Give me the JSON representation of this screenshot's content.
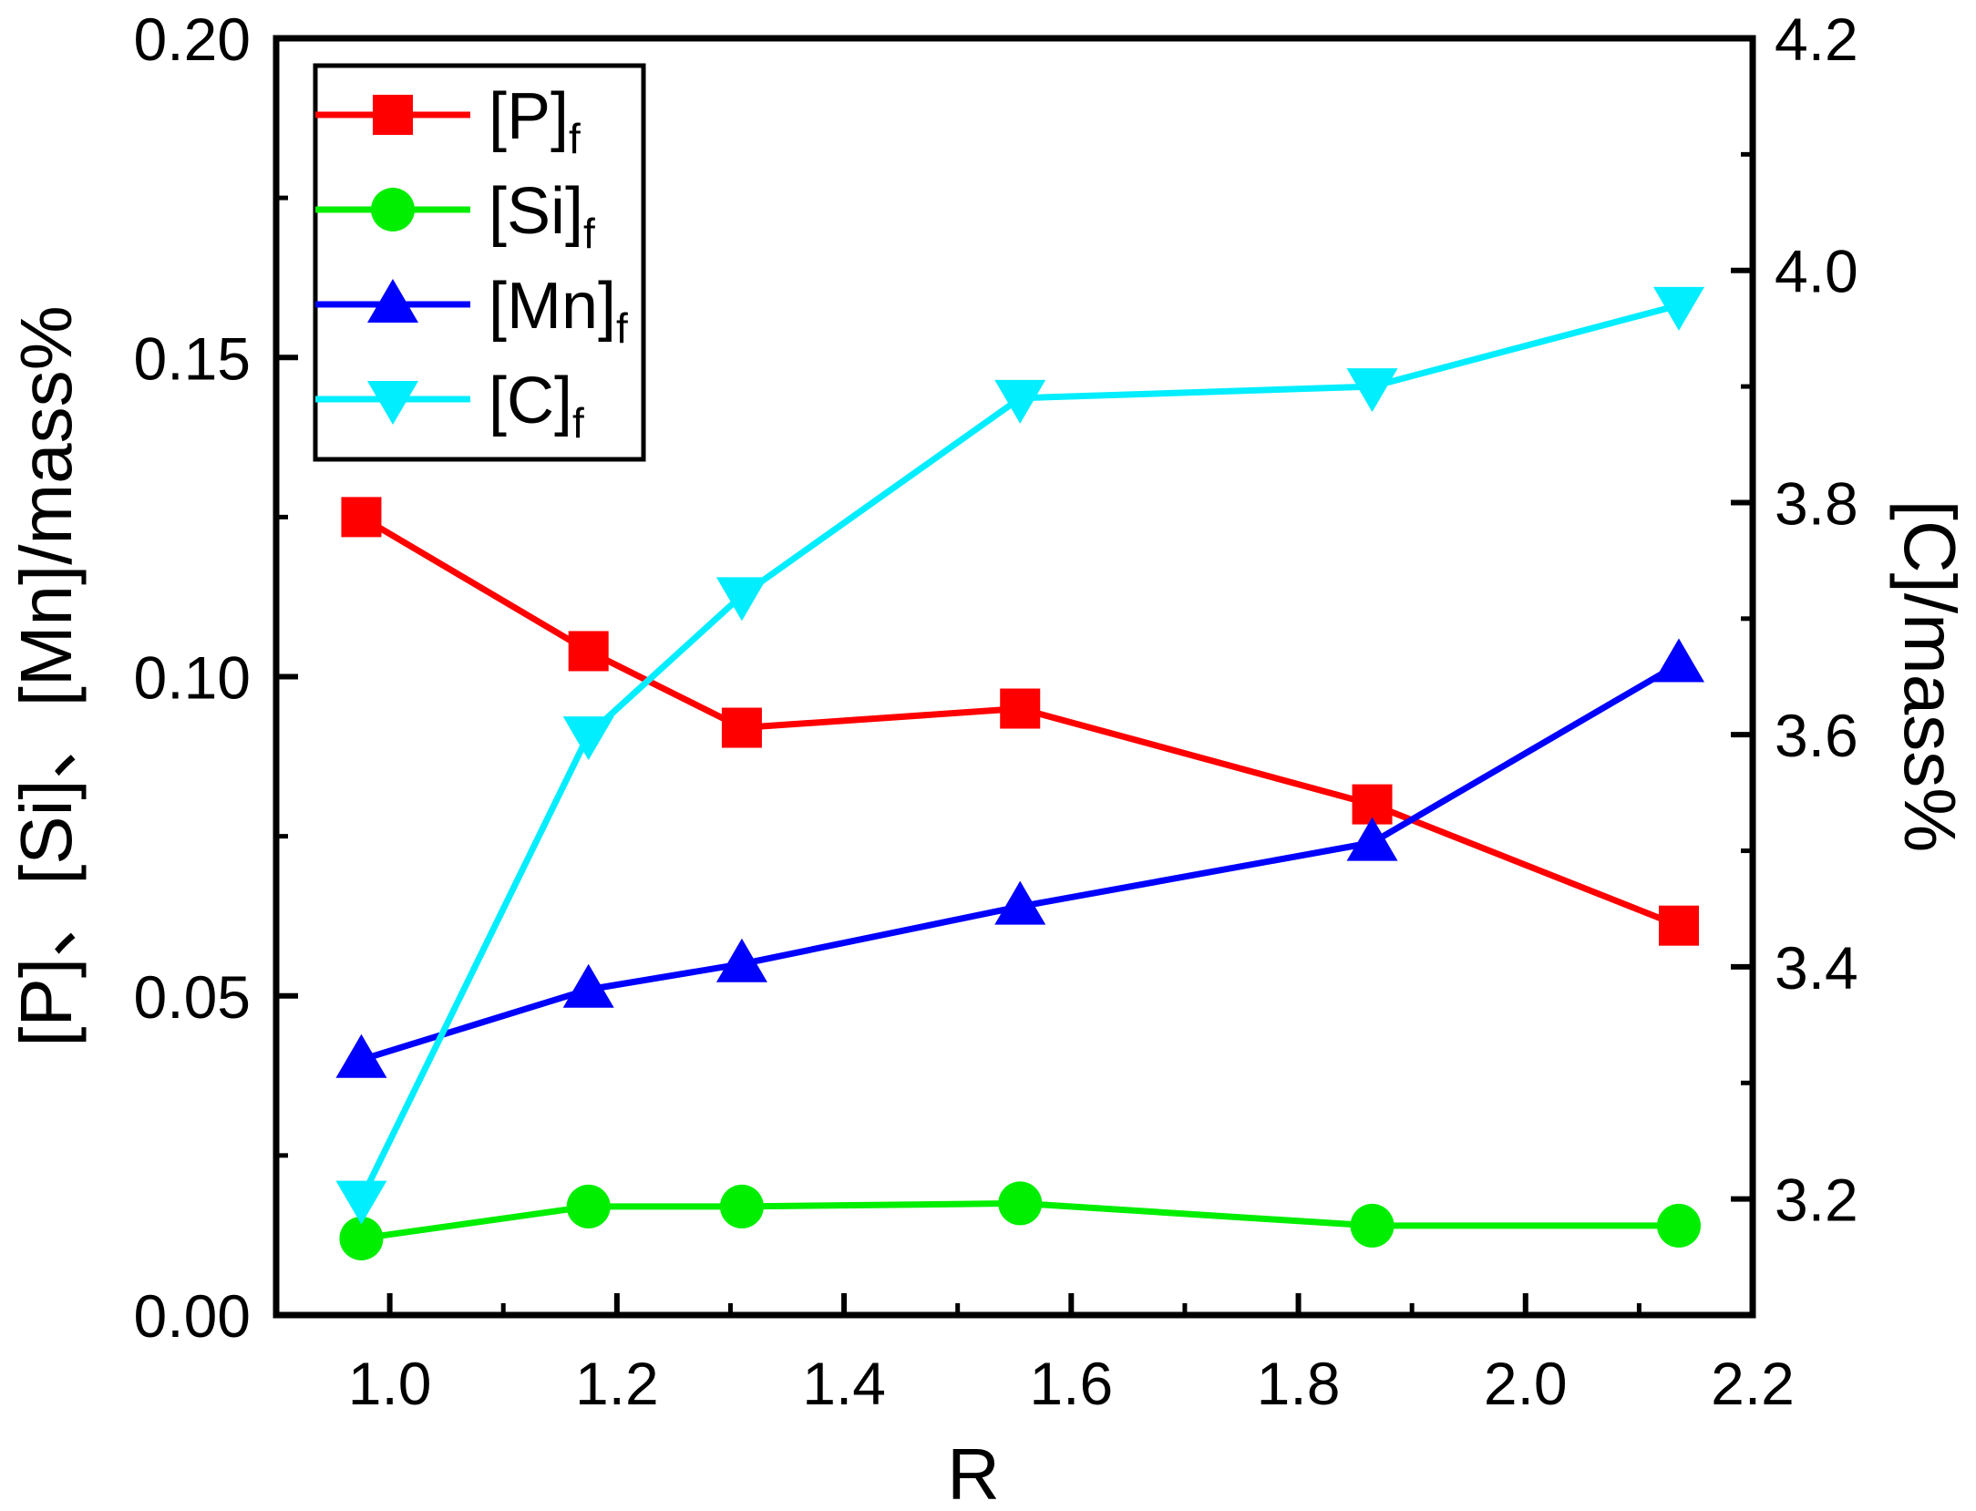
{
  "chart_data": {
    "type": "line",
    "x_label": "R",
    "y_left_label": "[P]、[Si]、[Mn]/mass%",
    "y_right_label": "[C]/mass%",
    "x_range": [
      0.9,
      2.2
    ],
    "x_ticks": [
      "1.0",
      "1.2",
      "1.4",
      "1.6",
      "1.8",
      "2.0",
      "2.2"
    ],
    "y_left_range": [
      0.0,
      0.2
    ],
    "y_left_ticks": [
      "0.00",
      "0.05",
      "0.10",
      "0.15",
      "0.20"
    ],
    "y_right_range": [
      3.1,
      4.2
    ],
    "y_right_ticks": [
      "3.2",
      "3.4",
      "3.6",
      "3.8",
      "4.0",
      "4.2"
    ],
    "x": [
      0.975,
      1.175,
      1.31,
      1.555,
      1.865,
      2.135
    ],
    "series": [
      {
        "name": "[P]",
        "subscript": "f",
        "axis": "left",
        "color": "#ff0000",
        "marker": "square",
        "values": [
          0.125,
          0.104,
          0.092,
          0.095,
          0.08,
          0.061
        ]
      },
      {
        "name": "[Si]",
        "subscript": "f",
        "axis": "left",
        "color": "#00ee00",
        "marker": "circle",
        "values": [
          0.012,
          0.017,
          0.017,
          0.0175,
          0.014,
          0.014
        ]
      },
      {
        "name": "[Mn]",
        "subscript": "f",
        "axis": "left",
        "color": "#0000ff",
        "marker": "triangle-up",
        "values": [
          0.04,
          0.051,
          0.055,
          0.064,
          0.074,
          0.102
        ]
      },
      {
        "name": "[C]",
        "subscript": "f",
        "axis": "right",
        "color": "#00eeff",
        "marker": "triangle-down",
        "values": [
          3.2,
          3.6,
          3.72,
          3.89,
          3.9,
          3.97
        ]
      }
    ],
    "legend_position": "top-left"
  }
}
